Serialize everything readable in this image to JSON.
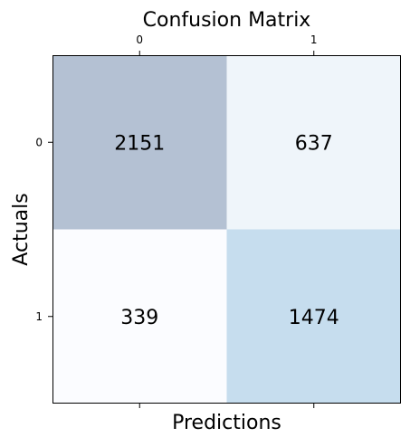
{
  "chart_data": {
    "type": "heatmap",
    "title": "Confusion Matrix",
    "xlabel": "Predictions",
    "ylabel": "Actuals",
    "x_categories": [
      "0",
      "1"
    ],
    "y_categories": [
      "0",
      "1"
    ],
    "x_tick_position": "top",
    "values": [
      [
        2151,
        637
      ],
      [
        339,
        1474
      ]
    ],
    "colormap": "Blues",
    "cell_alpha": 0.3,
    "cell_colors": [
      [
        "#b4c1d3",
        "#eff5fa"
      ],
      [
        "#fbfcff",
        "#c6ddee"
      ]
    ],
    "grid": false
  }
}
